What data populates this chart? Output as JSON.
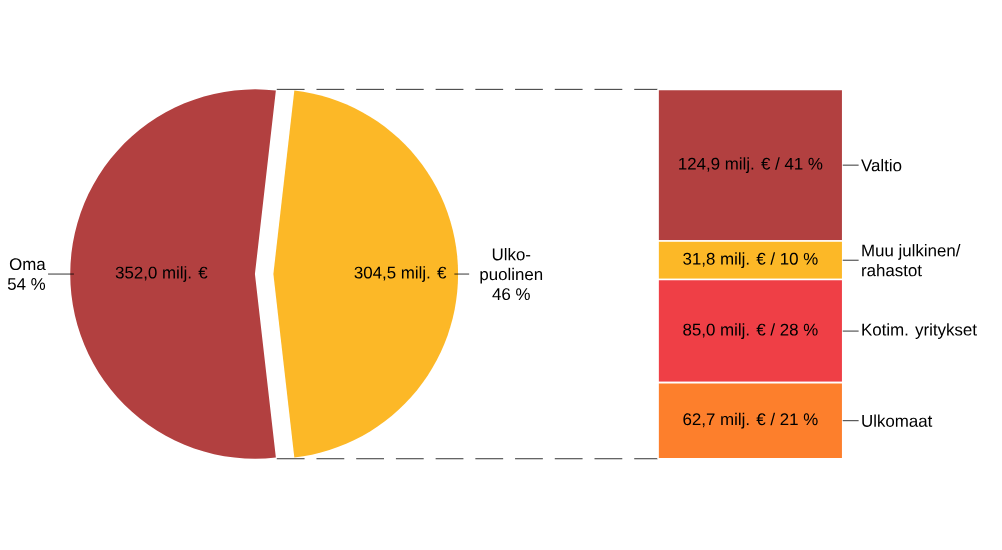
{
  "chart_data": [
    {
      "type": "pie",
      "categories": [
        "Oma 54 %",
        "Ulko-puolinen 46 %"
      ],
      "values": [
        352.0,
        304.5
      ],
      "colors": [
        "#b24040",
        "#fcb827"
      ],
      "value_labels": [
        "352,0 milj. €",
        "304,5 milj. €"
      ]
    },
    {
      "type": "bar",
      "stacked": true,
      "categories": [
        null
      ],
      "series": [
        {
          "name": "Ulkomaat",
          "color": "#fd7f2c",
          "values": [
            62.7
          ],
          "value_labels": [
            "62,7 milj. € / 21 %"
          ]
        },
        {
          "name": "Kotim. yritykset",
          "color": "#ef3f46",
          "values": [
            85.0
          ],
          "value_labels": [
            "85,0 milj. € / 28 %"
          ]
        },
        {
          "name": "Muu julkinen/ rahastot",
          "color": "#fcb827",
          "values": [
            31.8
          ],
          "value_labels": [
            "31,8 milj. € / 10 %"
          ]
        },
        {
          "name": "Valtio",
          "color": "#b24040",
          "values": [
            124.9
          ],
          "value_labels": [
            "124,9 milj. € / 41 %"
          ]
        }
      ]
    }
  ]
}
